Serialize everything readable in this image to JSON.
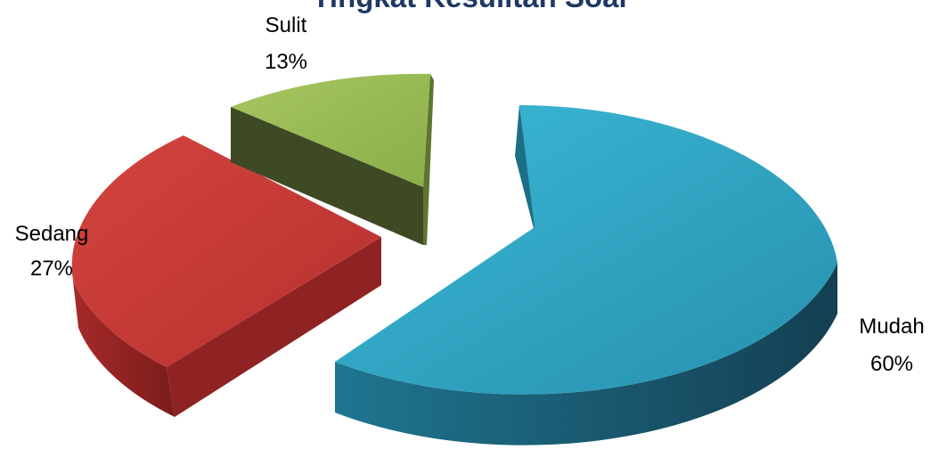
{
  "chart_data": {
    "type": "pie",
    "title": "Tingkat Kesulitan Soal",
    "style": "3d-exploded",
    "slices": [
      {
        "label": "Mudah",
        "percent_label": "60%",
        "value": 60,
        "color": "#2ba6c6"
      },
      {
        "label": "Sedang",
        "percent_label": "27%",
        "value": 27,
        "color": "#c73a37"
      },
      {
        "label": "Sulit",
        "percent_label": "13%",
        "value": 13,
        "color": "#98bb55"
      }
    ],
    "legend": "none"
  }
}
